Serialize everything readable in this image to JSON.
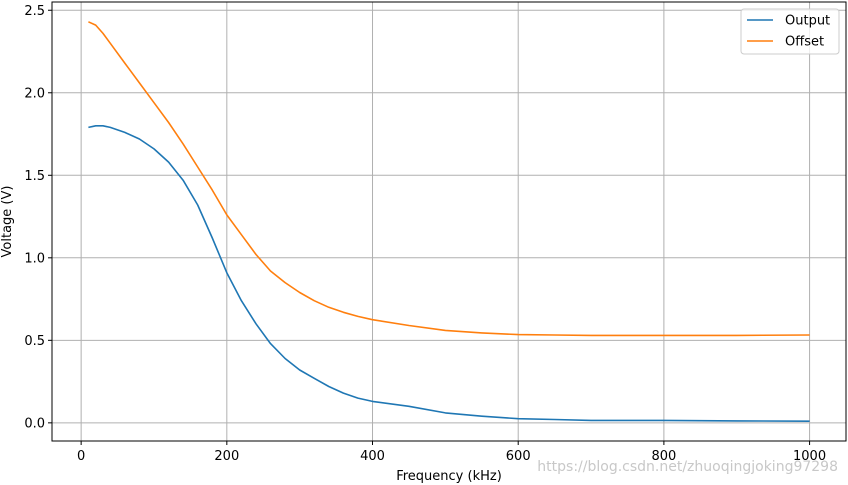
{
  "chart_data": {
    "type": "line",
    "xlabel": "Frequency (kHz)",
    "ylabel": "Voltage (V)",
    "xlim": [
      -40,
      1050
    ],
    "ylim": [
      -0.11,
      2.55
    ],
    "xticks": [
      0,
      200,
      400,
      600,
      800,
      1000
    ],
    "yticks": [
      0.0,
      0.5,
      1.0,
      1.5,
      2.0,
      2.5
    ],
    "xtick_labels": [
      "0",
      "200",
      "400",
      "600",
      "800",
      "1000"
    ],
    "ytick_labels": [
      "0.0",
      "0.5",
      "1.0",
      "1.5",
      "2.0",
      "2.5"
    ],
    "grid": true,
    "legend_position": "top-right",
    "series": [
      {
        "name": "Output",
        "color": "#1f77b4",
        "x": [
          10,
          20,
          30,
          40,
          60,
          80,
          100,
          120,
          140,
          160,
          180,
          200,
          220,
          240,
          260,
          280,
          300,
          320,
          340,
          360,
          380,
          400,
          450,
          500,
          550,
          600,
          650,
          700,
          800,
          900,
          1000
        ],
        "y": [
          1.79,
          1.8,
          1.8,
          1.79,
          1.76,
          1.72,
          1.66,
          1.58,
          1.47,
          1.32,
          1.12,
          0.91,
          0.74,
          0.6,
          0.48,
          0.39,
          0.32,
          0.27,
          0.22,
          0.18,
          0.15,
          0.13,
          0.1,
          0.06,
          0.04,
          0.025,
          0.02,
          0.015,
          0.015,
          0.012,
          0.01
        ]
      },
      {
        "name": "Offset",
        "color": "#ff7f0e",
        "x": [
          10,
          20,
          30,
          40,
          60,
          80,
          100,
          120,
          140,
          160,
          180,
          200,
          220,
          240,
          260,
          280,
          300,
          320,
          340,
          360,
          380,
          400,
          450,
          500,
          550,
          600,
          650,
          700,
          800,
          900,
          1000
        ],
        "y": [
          2.43,
          2.41,
          2.36,
          2.3,
          2.18,
          2.06,
          1.94,
          1.82,
          1.69,
          1.55,
          1.41,
          1.26,
          1.14,
          1.02,
          0.92,
          0.85,
          0.79,
          0.74,
          0.7,
          0.67,
          0.645,
          0.625,
          0.59,
          0.56,
          0.545,
          0.535,
          0.532,
          0.53,
          0.53,
          0.53,
          0.532
        ]
      }
    ]
  },
  "watermark": "https://blog.csdn.net/zhuoqingjoking97298"
}
